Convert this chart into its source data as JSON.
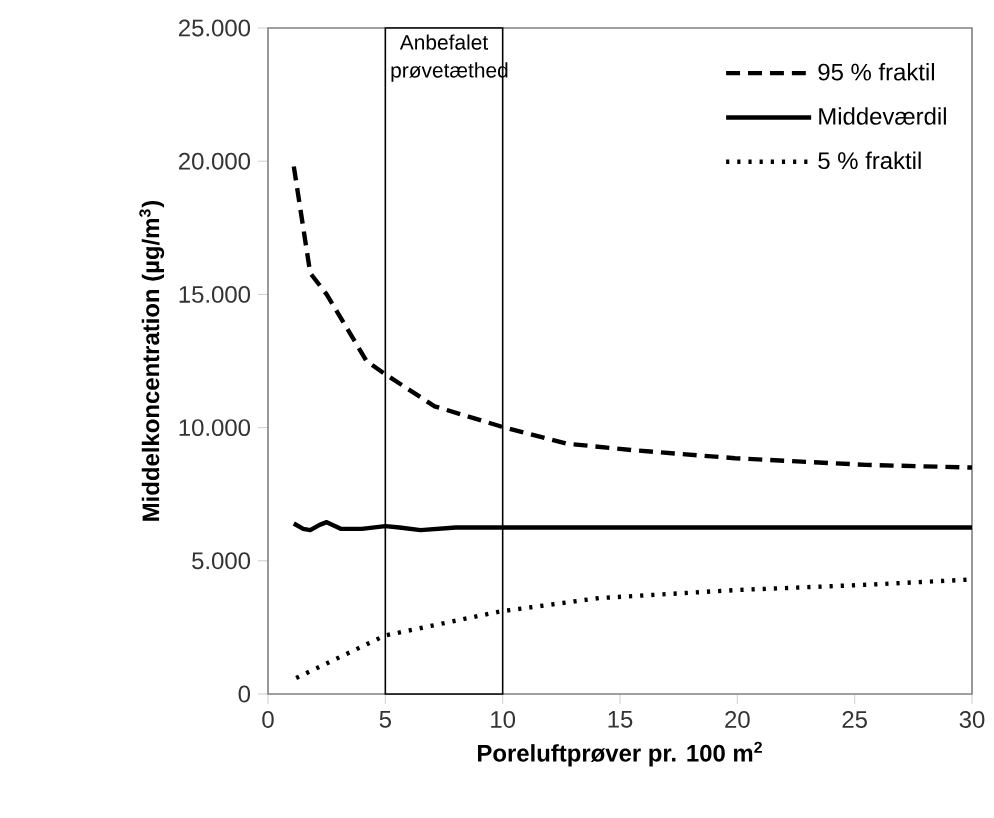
{
  "chart_data": {
    "type": "line",
    "xlabel": "Poreluftprøver pr. 100 m$^{2}$",
    "ylabel": "Middelkoncentration (µg/m$^{3}$)",
    "xlim": [
      0,
      30
    ],
    "xticks": [
      0,
      5,
      10,
      15,
      20,
      25,
      30
    ],
    "ylim": [
      0,
      25000
    ],
    "yticks": [
      {
        "value": 0,
        "label": "0"
      },
      {
        "value": 5000,
        "label": "5.000"
      },
      {
        "value": 10000,
        "label": "10.000"
      },
      {
        "value": 15000,
        "label": "15.000"
      },
      {
        "value": 20000,
        "label": "20.000"
      },
      {
        "value": 25000,
        "label": "25.000"
      }
    ],
    "legend": "top right",
    "grid": false,
    "marker": "none",
    "series": [
      {
        "name": "95 % fraktil",
        "color": "#000000",
        "line_style": "dashed",
        "x": [
          1.1,
          1.8,
          2.5,
          4.2,
          5,
          7.1,
          9.9,
          12.7,
          15.6,
          19.9,
          25.5,
          30
        ],
        "values": [
          19800,
          15800,
          15000,
          12500,
          12000,
          10800,
          10050,
          9400,
          9150,
          8850,
          8600,
          8500
        ]
      },
      {
        "name": "Middeværdil",
        "color": "#000000",
        "line_style": "solid",
        "x": [
          1.1,
          1.5,
          1.8,
          2.2,
          2.5,
          3.1,
          4,
          5,
          5.6,
          6.5,
          8,
          10,
          15,
          20,
          25,
          30
        ],
        "values": [
          6400,
          6200,
          6150,
          6350,
          6450,
          6200,
          6200,
          6300,
          6250,
          6150,
          6250,
          6250,
          6250,
          6250,
          6250,
          6250
        ]
      },
      {
        "name": "5 % fraktil",
        "color": "#000000",
        "line_style": "dotted",
        "x": [
          1.2,
          5,
          9.9,
          14.1,
          19.9,
          25.5,
          30
        ],
        "values": [
          600,
          2200,
          3100,
          3600,
          3900,
          4100,
          4300
        ]
      }
    ],
    "bands": [
      {
        "axis": "x",
        "from": 5,
        "to": 10,
        "label": "Anbefalet prøvetæthed",
        "color": "#ffffff"
      }
    ]
  }
}
